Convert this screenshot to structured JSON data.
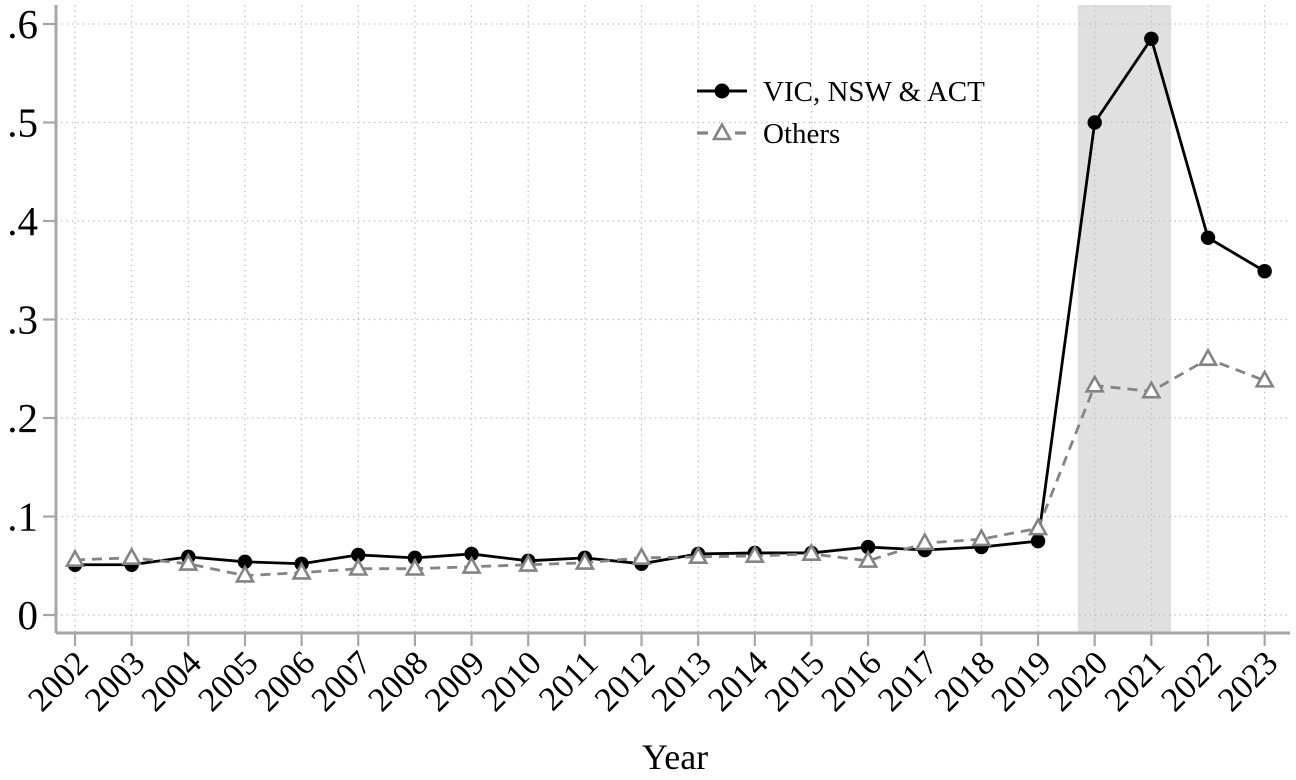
{
  "figure": {
    "background_color": "#ffffff",
    "plot_style": "stata-like line chart, dotted grid, no top/right spines"
  },
  "chart_data": {
    "type": "line",
    "title": "",
    "xlabel": "Year",
    "ylabel": "",
    "x": [
      2002,
      2003,
      2004,
      2005,
      2006,
      2007,
      2008,
      2009,
      2010,
      2011,
      2012,
      2013,
      2014,
      2015,
      2016,
      2017,
      2018,
      2019,
      2020,
      2021,
      2022,
      2023
    ],
    "series": [
      {
        "name": "VIC, NSW & ACT",
        "color": "#000000",
        "line_style": "solid",
        "marker": "filled-circle",
        "values": [
          0.051,
          0.051,
          0.059,
          0.054,
          0.052,
          0.061,
          0.058,
          0.062,
          0.055,
          0.058,
          0.052,
          0.062,
          0.063,
          0.063,
          0.069,
          0.066,
          0.069,
          0.075,
          0.5,
          0.585,
          0.383,
          0.349
        ]
      },
      {
        "name": "Others",
        "color": "#848484",
        "line_style": "dashed",
        "marker": "open-triangle",
        "values": [
          0.056,
          0.058,
          0.052,
          0.04,
          0.043,
          0.047,
          0.047,
          0.049,
          0.051,
          0.053,
          0.058,
          0.059,
          0.06,
          0.062,
          0.055,
          0.073,
          0.077,
          0.088,
          0.233,
          0.227,
          0.26,
          0.238
        ]
      }
    ],
    "ylim": [
      0,
      0.62
    ],
    "xlim": [
      2001.66,
      2023.45
    ],
    "yticks": [
      0,
      0.1,
      0.2,
      0.3,
      0.4,
      0.5,
      0.6
    ],
    "ytick_labels": [
      "0",
      ".1",
      ".2",
      ".3",
      ".4",
      ".5",
      ".6"
    ],
    "xtick_labels": [
      "2002",
      "2003",
      "2004",
      "2005",
      "2006",
      "2007",
      "2008",
      "2009",
      "2010",
      "2011",
      "2012",
      "2013",
      "2014",
      "2015",
      "2016",
      "2017",
      "2018",
      "2019",
      "2020",
      "2021",
      "2022",
      "2023"
    ],
    "xtick_rotation_deg": 45,
    "grid": "dotted horizontal and vertical",
    "legend_position": "inside upper right area, no frame",
    "shaded_region": {
      "x_start": 2019.7,
      "x_end": 2021.35,
      "color": "#e0e0e0"
    }
  },
  "colors": {
    "axis": "#a6a6a6",
    "grid": "#c2c2c2",
    "band": "#e0e0e0",
    "series_1": "#000000",
    "series_2": "#848484",
    "text": "#000000"
  }
}
